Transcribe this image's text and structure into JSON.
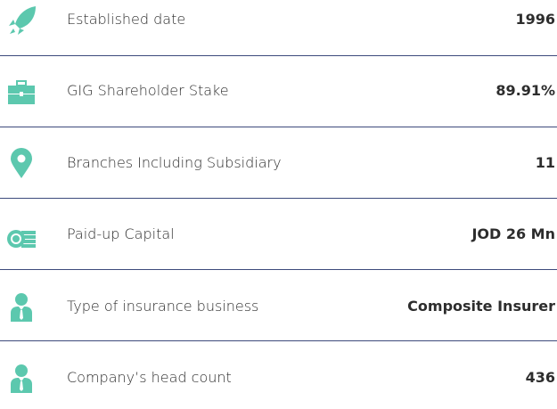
{
  "rows": [
    {
      "label": "Established date",
      "value": "1996"
    },
    {
      "label": "GIG Shareholder Stake",
      "value": "89.91%"
    },
    {
      "label": "Branches Including Subsidiary",
      "value": "11"
    },
    {
      "label": "Paid-up Capital",
      "value": "JOD 26 Mn"
    },
    {
      "label": "Type of insurance business",
      "value": "Composite Insurer"
    },
    {
      "label": "Company’s head count",
      "value": "436"
    }
  ]
}
